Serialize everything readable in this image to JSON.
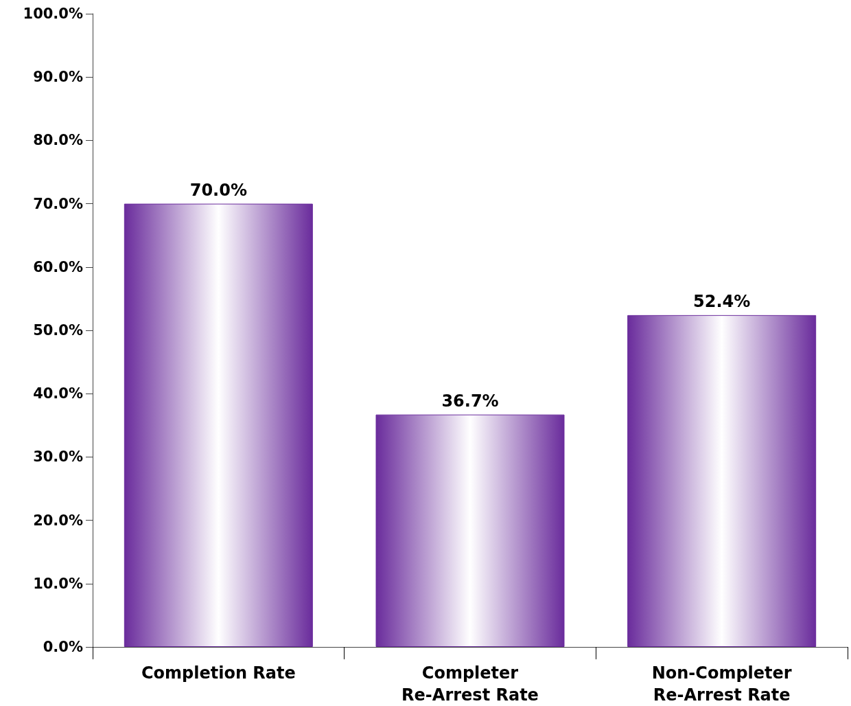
{
  "chart_data": {
    "type": "bar",
    "categories": [
      "Completion Rate",
      "Completer\nRe-Arrest Rate",
      "Non-Completer\nRe-Arrest Rate"
    ],
    "values": [
      70.0,
      36.7,
      52.4
    ],
    "value_labels": [
      "70.0%",
      "36.7%",
      "52.4%"
    ],
    "color": "#6a2c9c",
    "ylim": [
      0,
      100
    ],
    "yticks": [
      {
        "value": 0,
        "label": "0.0%"
      },
      {
        "value": 10,
        "label": "10.0%"
      },
      {
        "value": 20,
        "label": "20.0%"
      },
      {
        "value": 30,
        "label": "30.0%"
      },
      {
        "value": 40,
        "label": "40.0%"
      },
      {
        "value": 50,
        "label": "50.0%"
      },
      {
        "value": 60,
        "label": "60.0%"
      },
      {
        "value": 70,
        "label": "70.0%"
      },
      {
        "value": 80,
        "label": "80.0%"
      },
      {
        "value": 90,
        "label": "90.0%"
      },
      {
        "value": 100,
        "label": "100.0%"
      }
    ],
    "grid": false
  }
}
